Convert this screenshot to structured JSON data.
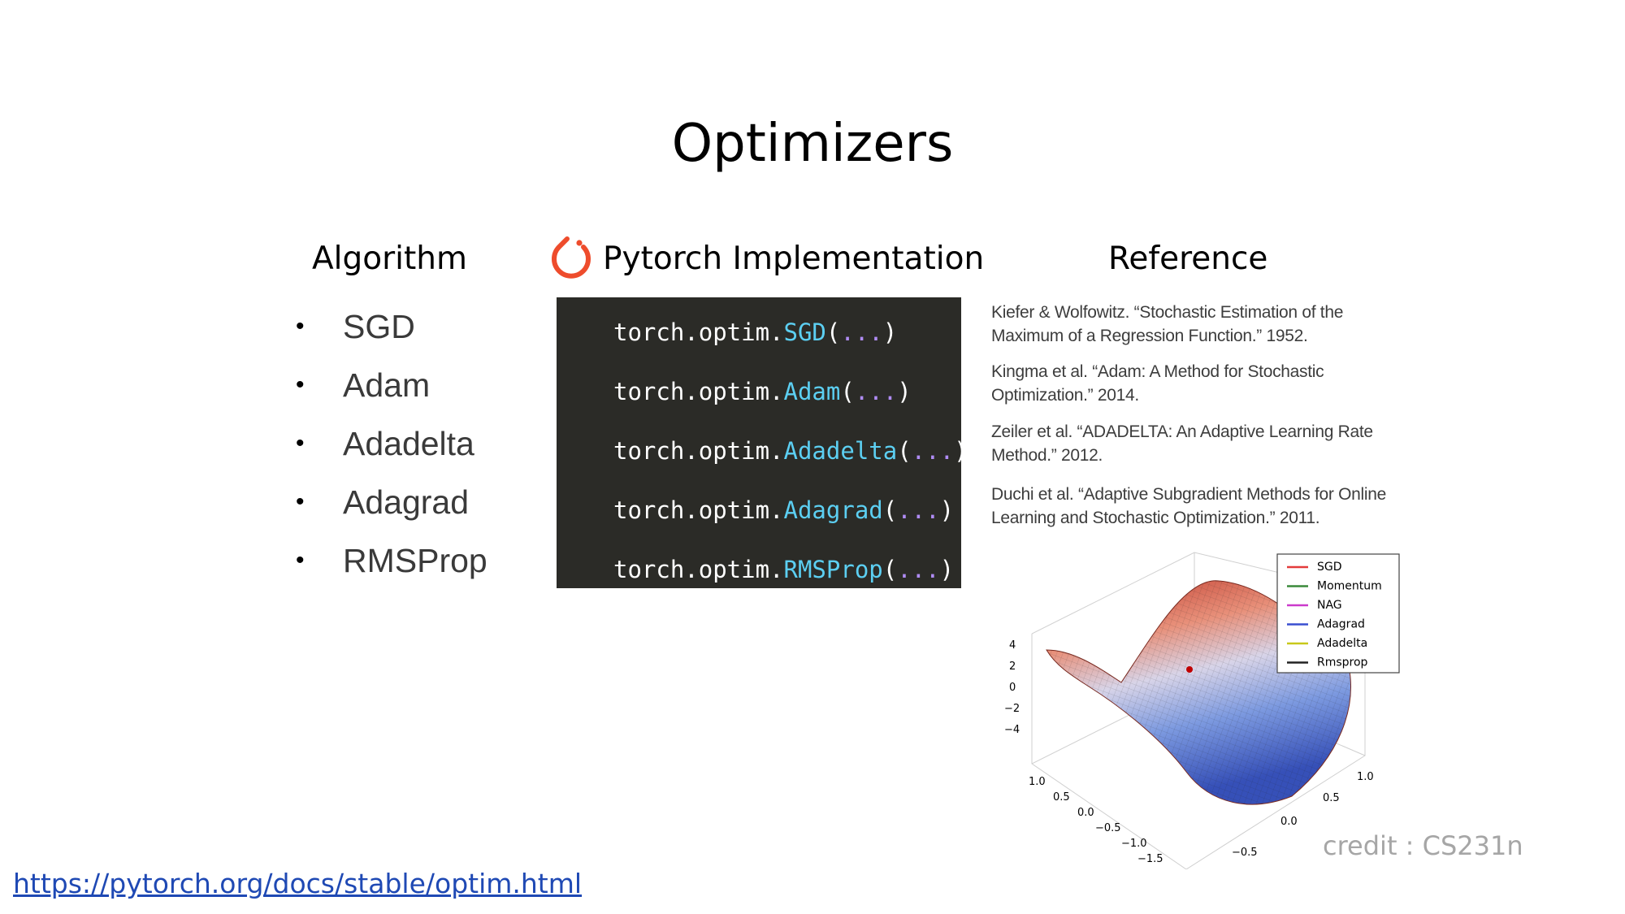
{
  "slide": {
    "title": "Optimizers",
    "headers": {
      "algorithm": "Algorithm",
      "implementation": "Pytorch Implementation",
      "reference": "Reference"
    },
    "algorithms": [
      "SGD",
      "Adam",
      "Adadelta",
      "Adagrad",
      "RMSProp"
    ],
    "code_lines": [
      {
        "prefix": "torch.optim.",
        "fn": "SGD",
        "open": "(",
        "dots": "...",
        "close": ")"
      },
      {
        "prefix": "torch.optim.",
        "fn": "Adam",
        "open": "(",
        "dots": "...",
        "close": ")"
      },
      {
        "prefix": "torch.optim.",
        "fn": "Adadelta",
        "open": "(",
        "dots": "...",
        "close": ")"
      },
      {
        "prefix": "torch.optim.",
        "fn": "Adagrad",
        "open": "(",
        "dots": "...",
        "close": ")"
      },
      {
        "prefix": "torch.optim.",
        "fn": "RMSProp",
        "open": "(",
        "dots": "...",
        "close": ")"
      }
    ],
    "references": [
      {
        "line1": "Kiefer & Wolfowitz. “Stochastic Estimation of the",
        "line2": "Maximum of a Regression Function.” 1952."
      },
      {
        "line1": "Kingma et al. “Adam: A Method for Stochastic",
        "line2": "Optimization.” 2014."
      },
      {
        "line1": "Zeiler et al. “ADADELTA: An Adaptive Learning Rate",
        "line2": "Method.” 2012."
      },
      {
        "line1": "Duchi et al. “Adaptive Subgradient Methods for Online",
        "line2": "Learning and Stochastic Optimization.” 2011."
      }
    ],
    "chart": {
      "legend": [
        "SGD",
        "Momentum",
        "NAG",
        "Adagrad",
        "Adadelta",
        "Rmsprop"
      ],
      "legend_colors": [
        "#e33b3b",
        "#3a8a3a",
        "#cc3acc",
        "#3a4fd0",
        "#c8c81a",
        "#222222"
      ],
      "z_ticks": [
        "4",
        "2",
        "0",
        "−2",
        "−4"
      ],
      "x_ticks": [
        "1.0",
        "0.5",
        "0.0",
        "−0.5",
        "−1.0",
        "−1.5"
      ],
      "y_ticks": [
        "−0.5",
        "0.0",
        "0.5",
        "1.0"
      ]
    },
    "credit": "credit : CS231n",
    "url": "https://pytorch.org/docs/stable/optim.html",
    "colors": {
      "code_bg": "#2b2b27",
      "code_fn": "#5ccff2",
      "code_dots": "#b08cf5",
      "torch_logo": "#ee4c2c",
      "link": "#1f49b4"
    }
  }
}
